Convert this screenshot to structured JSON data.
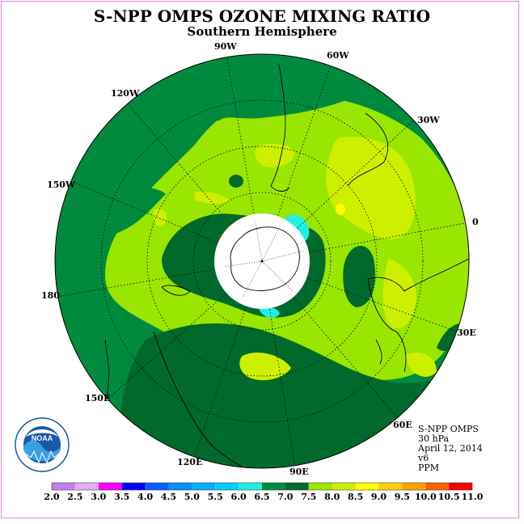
{
  "title": "S-NPP OMPS OZONE MIXING RATIO",
  "subtitle": "Southern Hemisphere",
  "longitude_labels": [
    "90W",
    "60W",
    "30W",
    "0",
    "30E",
    "60E",
    "90E",
    "120E",
    "150E",
    "180",
    "150W",
    "120W"
  ],
  "info": {
    "instrument": "S-NPP OMPS",
    "pressure": "30 hPa",
    "date": "April 12, 2014",
    "version": "v6",
    "units": "PPM"
  },
  "logo_text": "NOAA",
  "colorbar": {
    "ticks": [
      "2.0",
      "2.5",
      "3.0",
      "3.5",
      "4.0",
      "4.5",
      "5.0",
      "5.5",
      "6.0",
      "6.5",
      "7.0",
      "7.5",
      "8.0",
      "8.5",
      "9.0",
      "9.5",
      "10.0",
      "10.5",
      "11.0"
    ],
    "colors": [
      "#c080f0",
      "#e0b0f0",
      "#ff00ff",
      "#0000ff",
      "#0060ff",
      "#0090ff",
      "#00b0ff",
      "#00d0ff",
      "#20f0e0",
      "#008a3e",
      "#006a2c",
      "#99e600",
      "#ccf000",
      "#ffff00",
      "#ffd000",
      "#ffa000",
      "#ff6000",
      "#ff0000",
      "#8b4513"
    ]
  },
  "colors": {
    "level_6_5_7": "#008a3e",
    "level_7_7_5": "#006a2c",
    "level_7_5_8": "#99e600",
    "level_8_8_5": "#ccf000",
    "level_8_5_9": "#ffff00",
    "level_6_6_5": "#20f0e0",
    "frame": "#d48ad4"
  }
}
